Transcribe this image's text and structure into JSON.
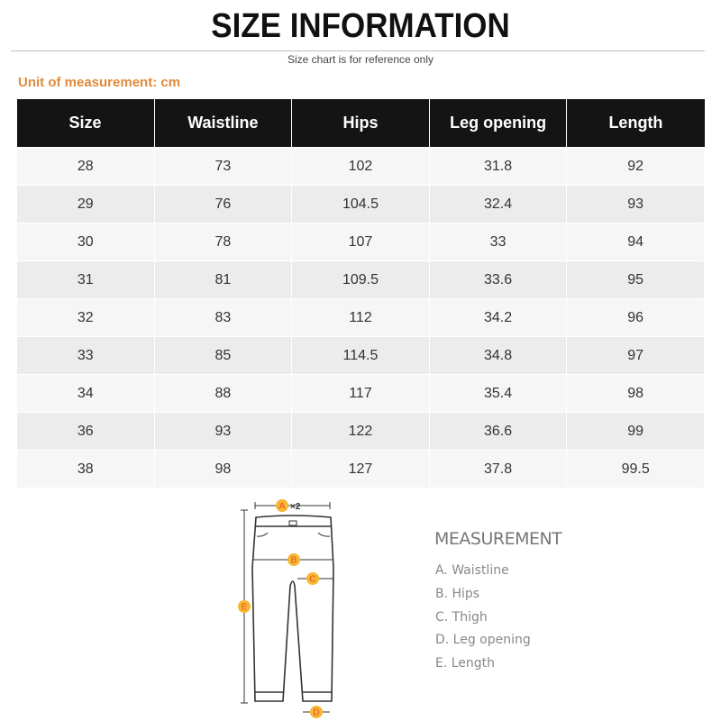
{
  "header": {
    "title": "SIZE INFORMATION",
    "subtitle": "Size chart is for reference only",
    "unit": "Unit of measurement: cm"
  },
  "table": {
    "columns": [
      "Size",
      "Waistline",
      "Hips",
      "Leg opening",
      "Length"
    ],
    "rows": [
      [
        "28",
        "73",
        "102",
        "31.8",
        "92"
      ],
      [
        "29",
        "76",
        "104.5",
        "32.4",
        "93"
      ],
      [
        "30",
        "78",
        "107",
        "33",
        "94"
      ],
      [
        "31",
        "81",
        "109.5",
        "33.6",
        "95"
      ],
      [
        "32",
        "83",
        "112",
        "34.2",
        "96"
      ],
      [
        "33",
        "85",
        "114.5",
        "34.8",
        "97"
      ],
      [
        "34",
        "88",
        "117",
        "35.4",
        "98"
      ],
      [
        "36",
        "93",
        "122",
        "36.6",
        "99"
      ],
      [
        "38",
        "98",
        "127",
        "37.8",
        "99.5"
      ]
    ]
  },
  "diagram": {
    "markers": [
      "A",
      "B",
      "C",
      "D",
      "E"
    ],
    "waist_multiplier": "×2",
    "marker_color": "#f7b731",
    "marker_text_color": "#e0502a"
  },
  "measurement": {
    "title": "MEASUREMENT",
    "items": [
      "A. Waistline",
      "B. Hips",
      "C. Thigh",
      "D. Leg opening",
      "E. Length"
    ]
  },
  "colors": {
    "accent": "#e08a3c",
    "header_bg": "#141414"
  }
}
